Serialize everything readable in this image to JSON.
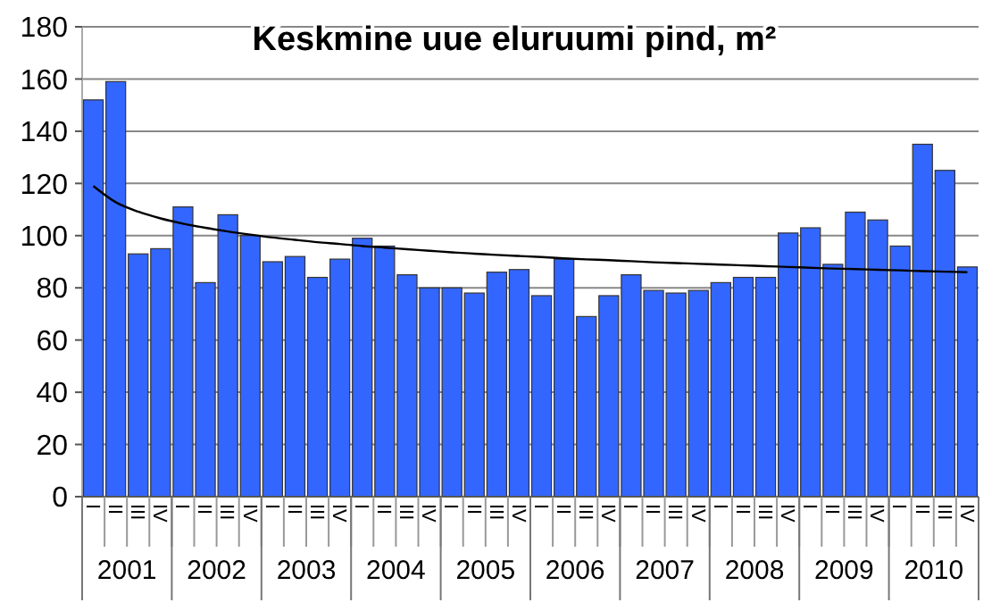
{
  "chart_data": {
    "type": "bar",
    "title": "Keskmine uue eluruumi pind, m²",
    "categories": [
      "I",
      "II",
      "III",
      "IV",
      "I",
      "II",
      "III",
      "IV",
      "I",
      "II",
      "III",
      "IV",
      "I",
      "II",
      "III",
      "IV",
      "I",
      "II",
      "III",
      "IV",
      "I",
      "II",
      "III",
      "IV",
      "I",
      "II",
      "III",
      "IV",
      "I",
      "II",
      "III",
      "IV",
      "I",
      "II",
      "III",
      "IV",
      "I",
      "II",
      "III",
      "IV"
    ],
    "annotations": [
      "2001",
      "2002",
      "2003",
      "2004",
      "2005",
      "2006",
      "2007",
      "2008",
      "2009",
      "2010"
    ],
    "series": [
      {
        "color": "#3366ff",
        "values": [
          152,
          159,
          93,
          95,
          111,
          82,
          108,
          100,
          90,
          92,
          84,
          91,
          99,
          96,
          85,
          80,
          80,
          78,
          86,
          87,
          77,
          91,
          69,
          77,
          85,
          79,
          78,
          79,
          82,
          84,
          84,
          101,
          103,
          89,
          109,
          106,
          96,
          135,
          125,
          88
        ]
      },
      {
        "type": "line",
        "color": "#000000",
        "values": [
          119,
          112.8,
          109.2,
          106.6,
          104.6,
          103,
          101.6,
          100.4,
          99.3,
          98.4,
          97.5,
          96.8,
          96,
          95.4,
          94.8,
          94.2,
          93.6,
          93.1,
          92.6,
          92.2,
          91.8,
          91.3,
          90.9,
          90.6,
          90.2,
          89.8,
          89.5,
          89.2,
          88.9,
          88.6,
          88.3,
          88,
          87.7,
          87.4,
          87.2,
          86.9,
          86.7,
          86.4,
          86.2,
          86
        ]
      }
    ],
    "ylim": [
      0,
      180
    ],
    "yticks": [
      0,
      20,
      40,
      60,
      80,
      100,
      120,
      140,
      160,
      180
    ],
    "grid": "y"
  }
}
